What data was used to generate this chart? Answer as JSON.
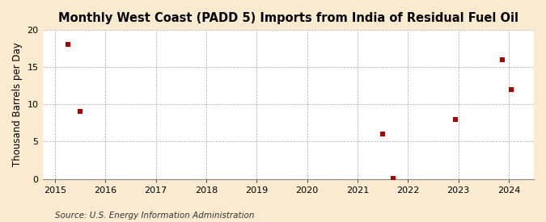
{
  "title": "Monthly West Coast (PADD 5) Imports from India of Residual Fuel Oil",
  "ylabel": "Thousand Barrels per Day",
  "source": "Source: U.S. Energy Information Administration",
  "figure_bg_color": "#faebd0",
  "axes_bg_color": "#ffffff",
  "scatter_color": "#aa0000",
  "data_points": [
    [
      2015.25,
      18.0
    ],
    [
      2015.5,
      9.0
    ],
    [
      2021.5,
      6.0
    ],
    [
      2021.7,
      0.1
    ],
    [
      2022.95,
      8.0
    ],
    [
      2023.88,
      16.0
    ],
    [
      2024.05,
      12.0
    ]
  ],
  "xlim": [
    2014.75,
    2024.5
  ],
  "ylim": [
    0,
    20
  ],
  "yticks": [
    0,
    5,
    10,
    15,
    20
  ],
  "xticks": [
    2015,
    2016,
    2017,
    2018,
    2019,
    2020,
    2021,
    2022,
    2023,
    2024
  ],
  "title_fontsize": 10.5,
  "label_fontsize": 8.5,
  "tick_fontsize": 8,
  "source_fontsize": 7.5,
  "marker_size": 20
}
